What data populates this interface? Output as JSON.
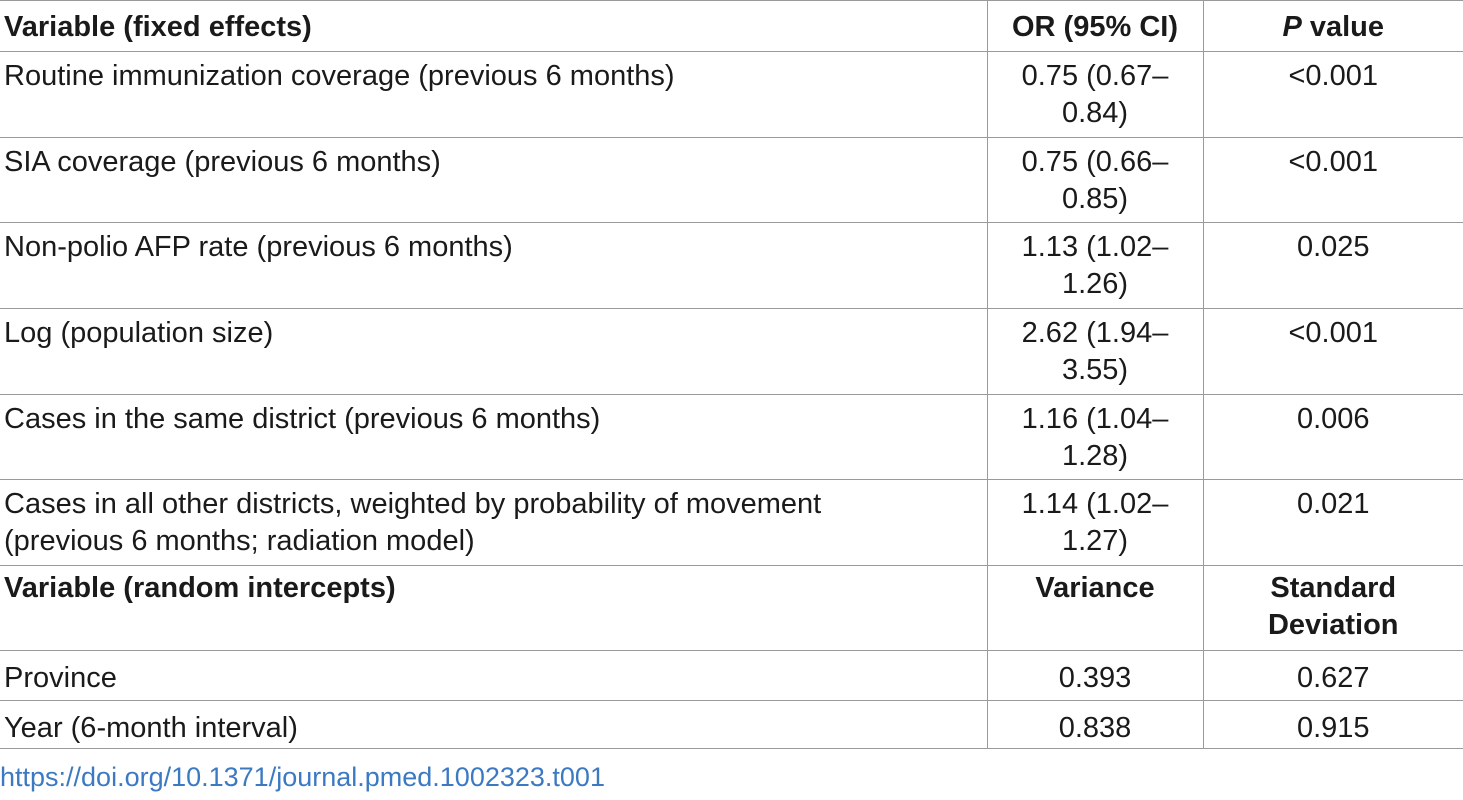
{
  "fixed_header": {
    "variable": "Variable (fixed effects)",
    "or": "OR (95% CI)",
    "p_italic": "P",
    "p_rest": " value"
  },
  "fixed_rows": [
    {
      "variable": "Routine immunization coverage (previous 6 months)",
      "or_line1": "0.75 (0.67–",
      "or_line2": "0.84)",
      "p": "<0.001"
    },
    {
      "variable": "SIA coverage (previous 6 months)",
      "or_line1": "0.75 (0.66–",
      "or_line2": "0.85)",
      "p": "<0.001"
    },
    {
      "variable": "Non-polio AFP rate (previous 6 months)",
      "or_line1": "1.13 (1.02–",
      "or_line2": "1.26)",
      "p": "0.025"
    },
    {
      "variable": "Log (population size)",
      "or_line1": "2.62 (1.94–",
      "or_line2": "3.55)",
      "p": "<0.001"
    },
    {
      "variable": "Cases in the same district (previous 6 months)",
      "or_line1": "1.16 (1.04–",
      "or_line2": "1.28)",
      "p": "0.006"
    },
    {
      "variable_line1": "Cases in all other districts, weighted by probability of movement",
      "variable_line2": "(previous 6 months; radiation model)",
      "or_line1": "1.14 (1.02–",
      "or_line2": "1.27)",
      "p": "0.021"
    }
  ],
  "random_header": {
    "variable": "Variable (random intercepts)",
    "variance": "Variance",
    "sd_line1": "Standard",
    "sd_line2": "Deviation"
  },
  "random_rows": [
    {
      "variable": "Province",
      "variance": "0.393",
      "sd": "0.627"
    },
    {
      "variable": "Year (6-month interval)",
      "variance": "0.838",
      "sd": "0.915"
    }
  ],
  "doi_link": "https://doi.org/10.1371/journal.pmed.1002323.t001",
  "colors": {
    "text": "#1a1a1a",
    "rule": "#9a9a9a",
    "link": "#3b7ac3"
  }
}
